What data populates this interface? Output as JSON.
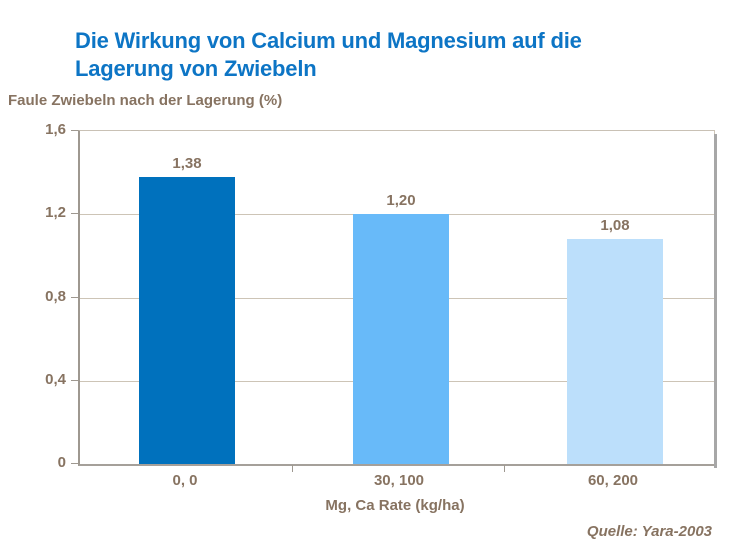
{
  "title": "Die Wirkung von Calcium und Magnesium auf die Lagerung von Zwiebeln",
  "y_axis_title": "Faule Zwiebeln nach der Lagerung (%)",
  "x_axis_title": "Mg, Ca Rate (kg/ha)",
  "source": "Quelle: Yara-2003",
  "colors": {
    "title_blue": "#0d75c5",
    "label_brown": "#877361",
    "gridline": "#cdc4b6",
    "axis_gray": "#9e9890",
    "shadow_gray": "#a7a7a7"
  },
  "chart_data": {
    "type": "bar",
    "title": "Die Wirkung von Calcium und Magnesium auf die Lagerung von Zwiebeln",
    "xlabel": "Mg, Ca Rate (kg/ha)",
    "ylabel": "Faule Zwiebeln nach der Lagerung (%)",
    "categories": [
      "0, 0",
      "30, 100",
      "60, 200"
    ],
    "values": [
      1.38,
      1.2,
      1.08
    ],
    "value_labels": [
      "1,38",
      "1,20",
      "1,08"
    ],
    "bar_colors": [
      "#0071bd",
      "#68baf9",
      "#bcdffb"
    ],
    "ylim": [
      0,
      1.6
    ],
    "y_ticks": [
      "1,6",
      "1,2",
      "0,8",
      "0,4",
      "0"
    ],
    "y_tick_values": [
      1.6,
      1.2,
      0.8,
      0.4,
      0
    ],
    "grid": true,
    "legend": false
  }
}
